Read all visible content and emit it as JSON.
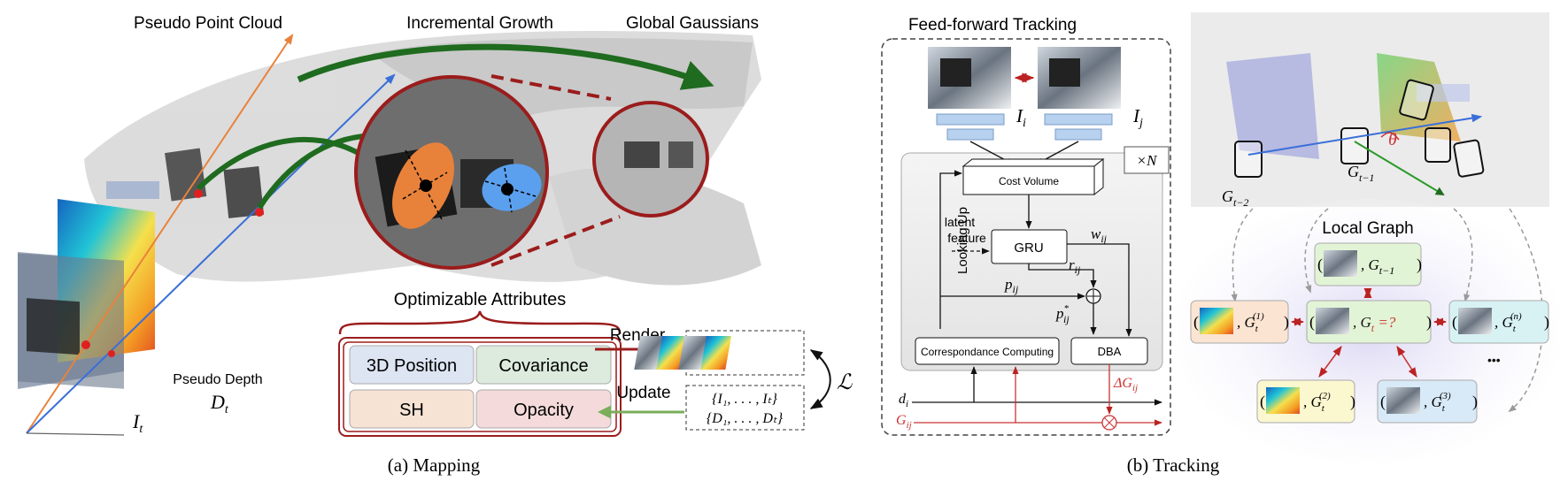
{
  "mapping": {
    "title_point_cloud": "Pseudo Point Cloud",
    "title_incremental": "Incremental Growth",
    "title_global": "Global Gaussians",
    "depth_label_1": "Pseudo Depth",
    "depth_label_2": "D",
    "depth_label_2_sub": "t",
    "image_label": "I",
    "image_label_sub": "t",
    "optimizable_title": "Optimizable Attributes",
    "attr_position": "3D Position",
    "attr_covariance": "Covariance",
    "attr_sh": "SH",
    "attr_opacity": "Opacity",
    "render_label": "Render",
    "update_label": "Update",
    "set_images": "{I₁, . . . , Iₜ}",
    "set_depths": "{D₁, . . . , Dₜ}",
    "loss_symbol": "ℒ",
    "caption": "(a)  Mapping"
  },
  "tracking": {
    "ff_title": "Feed-forward Tracking",
    "label_ii": "I",
    "label_ii_sub": "i",
    "label_ij": "I",
    "label_ij_sub": "j",
    "times_n": "×N",
    "cost_volume": "Cost Volume",
    "latent": "latent",
    "feature": "feature",
    "gru": "GRU",
    "looking_up": "Looking Up",
    "w_ij": "w",
    "w_ij_sub": "ij",
    "r_ij": "r",
    "r_ij_sub": "ij",
    "p_ij": "p",
    "p_ij_sub": "ij",
    "p_star": "p",
    "p_star_sub": "ij",
    "p_star_sup": "*",
    "corr": "Correspondance Computing",
    "dba": "DBA",
    "delta_g": "ΔG",
    "delta_g_sub": "ij",
    "d_i": "d",
    "d_i_sub": "i",
    "g_ij": "G",
    "g_ij_sub": "ij",
    "theta": "θ",
    "g_t2": "G",
    "g_t2_sub": "t−2",
    "g_t1": "G",
    "g_t1_sub": "t−1",
    "local_graph": "Local Graph",
    "node_prev": ", G",
    "node_prev_sub": "t−1",
    "node_1": ", G",
    "node_1_sub": "t",
    "node_1_sup": "(1)",
    "node_center": ", G",
    "node_center_sub": "t",
    "node_center_eq": " =?",
    "node_n": ", G",
    "node_n_sub": "t",
    "node_n_sup": "(n)",
    "node_2": ", G",
    "node_2_sub": "t",
    "node_2_sup": "(2)",
    "node_3": ", G",
    "node_3_sub": "t",
    "node_3_sup": "(3)",
    "dots": "•••",
    "caption": "(b)  Tracking"
  },
  "colors": {
    "green_arrow": "#1f6b1f",
    "dark_red": "#9b1c1c",
    "orange": "#e8823a",
    "blue": "#3a6fd8",
    "lavender": "#e6e3f5",
    "attr_blue": "#dde4f2",
    "attr_green": "#dcebdd",
    "attr_orange": "#f7e3d4",
    "attr_pink": "#f4dada"
  }
}
